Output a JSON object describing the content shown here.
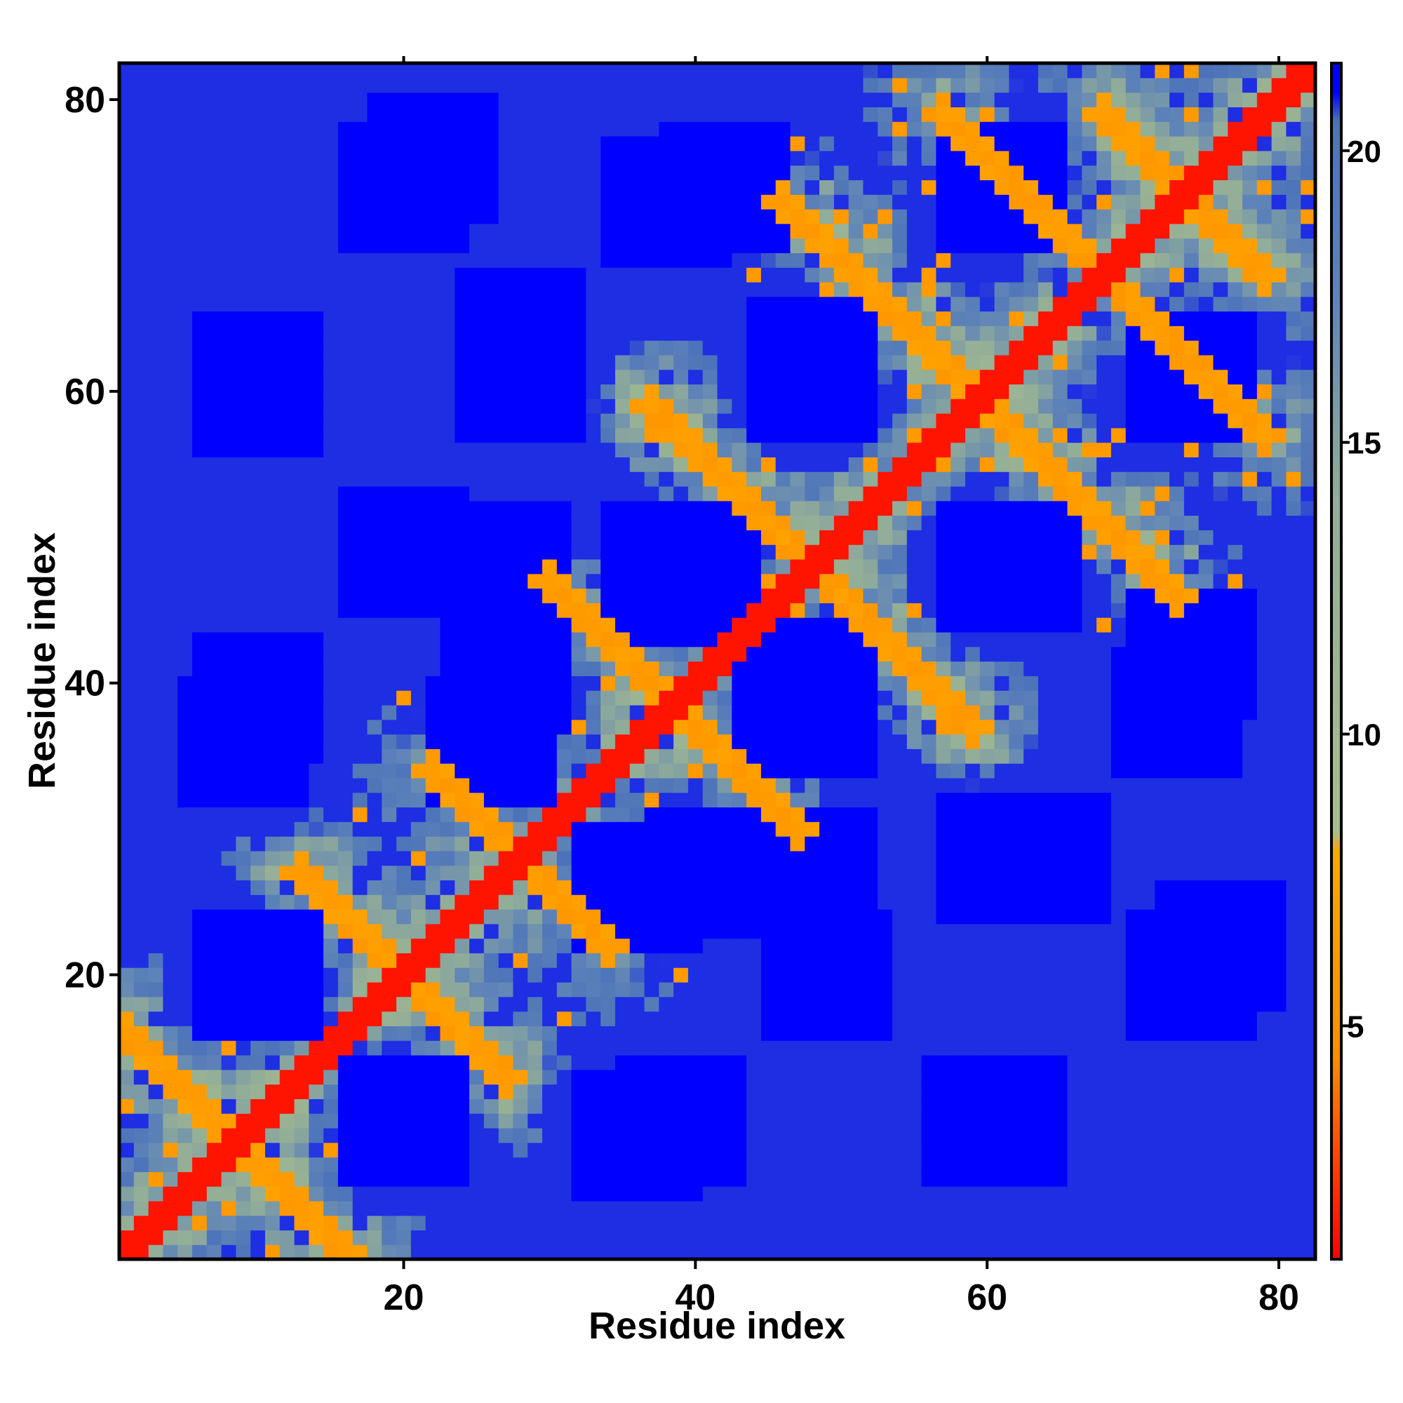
{
  "chart_data": {
    "type": "heatmap",
    "title": "",
    "xlabel": "Residue index",
    "ylabel": "Residue index",
    "n_residues": 82,
    "xlim": [
      1,
      82
    ],
    "ylim": [
      1,
      82
    ],
    "x_ticks": [
      20,
      40,
      60,
      80
    ],
    "y_ticks": [
      20,
      40,
      60,
      80
    ],
    "grid": false,
    "colorbar": {
      "position": "right",
      "range": [
        1,
        21.5
      ],
      "ticks": [
        5,
        10,
        15,
        20
      ],
      "stops": [
        {
          "value": 1,
          "color": "#ff0000"
        },
        {
          "value": 4.5,
          "color": "#ff8c00"
        },
        {
          "value": 8,
          "color": "#ffa500"
        },
        {
          "value": 8.3,
          "color": "#a8bd8c"
        },
        {
          "value": 14,
          "color": "#92ad98"
        },
        {
          "value": 17.5,
          "color": "#5f84b8"
        },
        {
          "value": 20.5,
          "color": "#4c72ba"
        },
        {
          "value": 21,
          "color": "#0000ff"
        }
      ]
    },
    "contact_bands": [
      {
        "name": "diagonal",
        "start": [
          1,
          1
        ],
        "end": [
          82,
          82
        ]
      },
      {
        "name": "antiparallel",
        "start": [
          1,
          16
        ],
        "end": [
          16,
          1
        ]
      },
      {
        "name": "antiparallel",
        "start": [
          13,
          27
        ],
        "end": [
          27,
          13
        ]
      },
      {
        "name": "antiparallel",
        "start": [
          22,
          34
        ],
        "end": [
          34,
          22
        ]
      },
      {
        "name": "antiparallel",
        "start": [
          30,
          47
        ],
        "end": [
          47,
          30
        ]
      },
      {
        "name": "antiparallel",
        "start": [
          37,
          59
        ],
        "end": [
          59,
          37
        ]
      },
      {
        "name": "antiparallel",
        "start": [
          46,
          73
        ],
        "end": [
          73,
          46
        ]
      },
      {
        "name": "antiparallel",
        "start": [
          57,
          79
        ],
        "end": [
          79,
          57
        ]
      },
      {
        "name": "antiparallel",
        "start": [
          68,
          79
        ],
        "end": [
          79,
          68
        ]
      }
    ],
    "far_blocks_centers": [
      [
        10,
        61
      ],
      [
        28,
        61
      ],
      [
        48,
        61
      ],
      [
        74,
        61
      ],
      [
        10,
        39
      ],
      [
        27,
        41
      ],
      [
        38,
        48
      ],
      [
        20,
        10
      ],
      [
        36,
        9
      ],
      [
        60,
        10
      ],
      [
        62,
        48
      ],
      [
        64,
        28
      ],
      [
        73,
        38
      ],
      [
        36,
        26
      ],
      [
        47,
        40
      ],
      [
        49,
        20
      ],
      [
        74,
        20
      ],
      [
        22,
        76
      ],
      [
        42,
        74
      ],
      [
        61,
        74
      ],
      [
        27,
        48
      ],
      [
        10,
        20
      ]
    ]
  }
}
